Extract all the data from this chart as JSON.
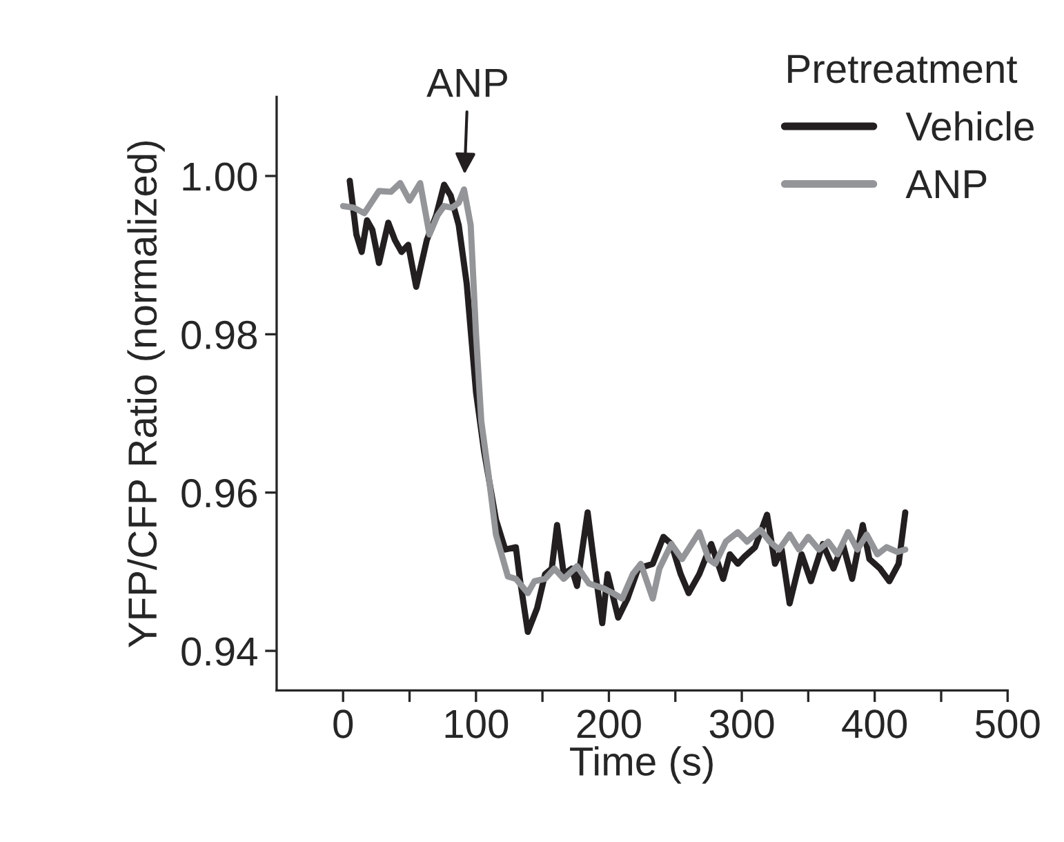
{
  "chart_data": {
    "type": "line",
    "xlabel": "Time (s)",
    "ylabel": "YFP/CFP Ratio (normalized)",
    "legend_title": "Pretreatment",
    "legend": "top right",
    "grid": false,
    "xlim": [
      -50,
      500
    ],
    "ylim": [
      0.935,
      1.01
    ],
    "xticks": [
      0,
      {
        "value": 50,
        "label": null
      },
      100,
      {
        "value": 150,
        "label": null
      },
      200,
      {
        "value": 250,
        "label": null
      },
      300,
      {
        "value": 350,
        "label": null
      },
      400,
      {
        "value": 450,
        "label": null
      },
      500
    ],
    "yticks": [
      0.94,
      0.96,
      0.98,
      {
        "value": 1.0,
        "label": "1.00"
      }
    ],
    "annotations": [
      {
        "text": "ANP",
        "x": 91,
        "y": 0.9983
      }
    ],
    "series": [
      {
        "name": "Vehicle",
        "color": "#231f20",
        "x": [
          5,
          10,
          14,
          18,
          22,
          27,
          34,
          39,
          44,
          49,
          55,
          63,
          70,
          76,
          81,
          87,
          93,
          100,
          106,
          115,
          122,
          130,
          133,
          139,
          146,
          152,
          157,
          161,
          166,
          172,
          176,
          184,
          188,
          195,
          199,
          207,
          214,
          222,
          233,
          241,
          247,
          254,
          260,
          268,
          277,
          286,
          291,
          297,
          302,
          310,
          319,
          325,
          330,
          336,
          345,
          352,
          361,
          369,
          376,
          383,
          391,
          396,
          404,
          411,
          418,
          423
        ],
        "values": [
          0.9994,
          0.9926,
          0.9904,
          0.9944,
          0.9932,
          0.989,
          0.9941,
          0.9919,
          0.9904,
          0.9913,
          0.986,
          0.9919,
          0.995,
          0.9989,
          0.9975,
          0.9938,
          0.9864,
          0.9727,
          0.9653,
          0.9566,
          0.9528,
          0.9531,
          0.9491,
          0.9424,
          0.9454,
          0.9497,
          0.9504,
          0.9559,
          0.9497,
          0.9504,
          0.9482,
          0.9575,
          0.9522,
          0.9435,
          0.9497,
          0.9442,
          0.9466,
          0.9504,
          0.951,
          0.9544,
          0.9535,
          0.9497,
          0.9473,
          0.9497,
          0.9535,
          0.9491,
          0.9522,
          0.951,
          0.9519,
          0.9531,
          0.9572,
          0.951,
          0.9528,
          0.946,
          0.9522,
          0.9488,
          0.9535,
          0.9504,
          0.9535,
          0.9491,
          0.9559,
          0.9516,
          0.9504,
          0.9488,
          0.951,
          0.9575
        ]
      },
      {
        "name": "ANP",
        "color": "#939598",
        "x": [
          0,
          8,
          16,
          27,
          36,
          43,
          50,
          58,
          65,
          71,
          76,
          82,
          87,
          91,
          96,
          100,
          104,
          109,
          115,
          124,
          130,
          139,
          144,
          152,
          159,
          166,
          176,
          185,
          196,
          203,
          210,
          218,
          224,
          233,
          238,
          247,
          255,
          268,
          275,
          280,
          288,
          297,
          304,
          314,
          321,
          328,
          336,
          343,
          350,
          358,
          365,
          372,
          380,
          387,
          394,
          402,
          409,
          417,
          423
        ],
        "values": [
          0.9962,
          0.996,
          0.9953,
          0.9981,
          0.998,
          0.9991,
          0.9969,
          0.9991,
          0.9926,
          0.995,
          0.9962,
          0.996,
          0.9966,
          0.9983,
          0.9938,
          0.9801,
          0.969,
          0.9628,
          0.9547,
          0.9494,
          0.9491,
          0.9473,
          0.9488,
          0.9491,
          0.9504,
          0.9491,
          0.9507,
          0.9485,
          0.9479,
          0.9473,
          0.9466,
          0.9497,
          0.951,
          0.9466,
          0.9504,
          0.9535,
          0.9516,
          0.955,
          0.9516,
          0.951,
          0.9538,
          0.955,
          0.9538,
          0.9553,
          0.9538,
          0.9528,
          0.9547,
          0.9528,
          0.9544,
          0.9528,
          0.9538,
          0.9522,
          0.955,
          0.9528,
          0.9547,
          0.9522,
          0.9531,
          0.9525,
          0.9528
        ]
      }
    ]
  }
}
